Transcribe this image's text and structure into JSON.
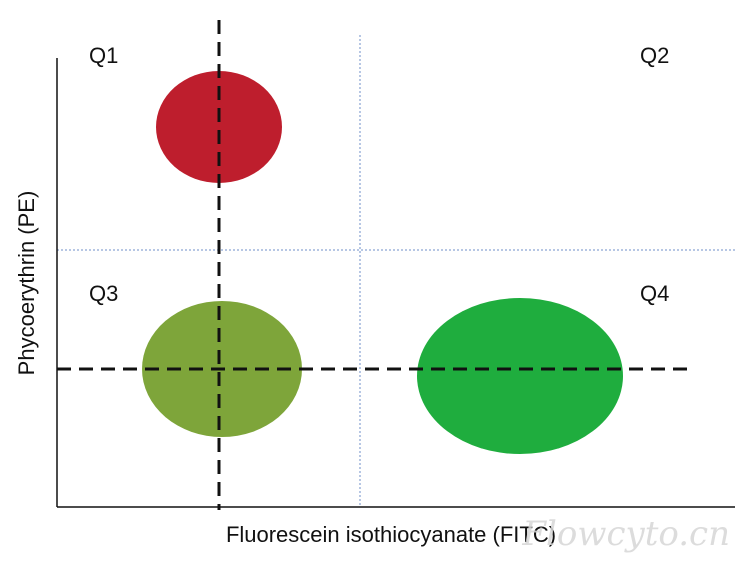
{
  "quadrants": [
    {
      "id": "q1",
      "label": "Q1"
    },
    {
      "id": "q2",
      "label": "Q2"
    },
    {
      "id": "q3",
      "label": "Q3"
    },
    {
      "id": "q4",
      "label": "Q4"
    }
  ],
  "axes": {
    "x_label": "Fluorescein isothiocyanate (FITC)",
    "y_label": "Phycoerythrin (PE)"
  },
  "populations": [
    {
      "id": "q1-population",
      "quadrant": "Q1",
      "color": "#be1e2d"
    },
    {
      "id": "q3-population",
      "quadrant": "Q3",
      "color": "#7ea53a"
    },
    {
      "id": "q4-population",
      "quadrant": "Q4",
      "color": "#1fad3e"
    }
  ],
  "gates": {
    "dashed_color": "#111111",
    "dotted_color": "#6f8fc9"
  },
  "watermark": "Flowcyto.cn"
}
